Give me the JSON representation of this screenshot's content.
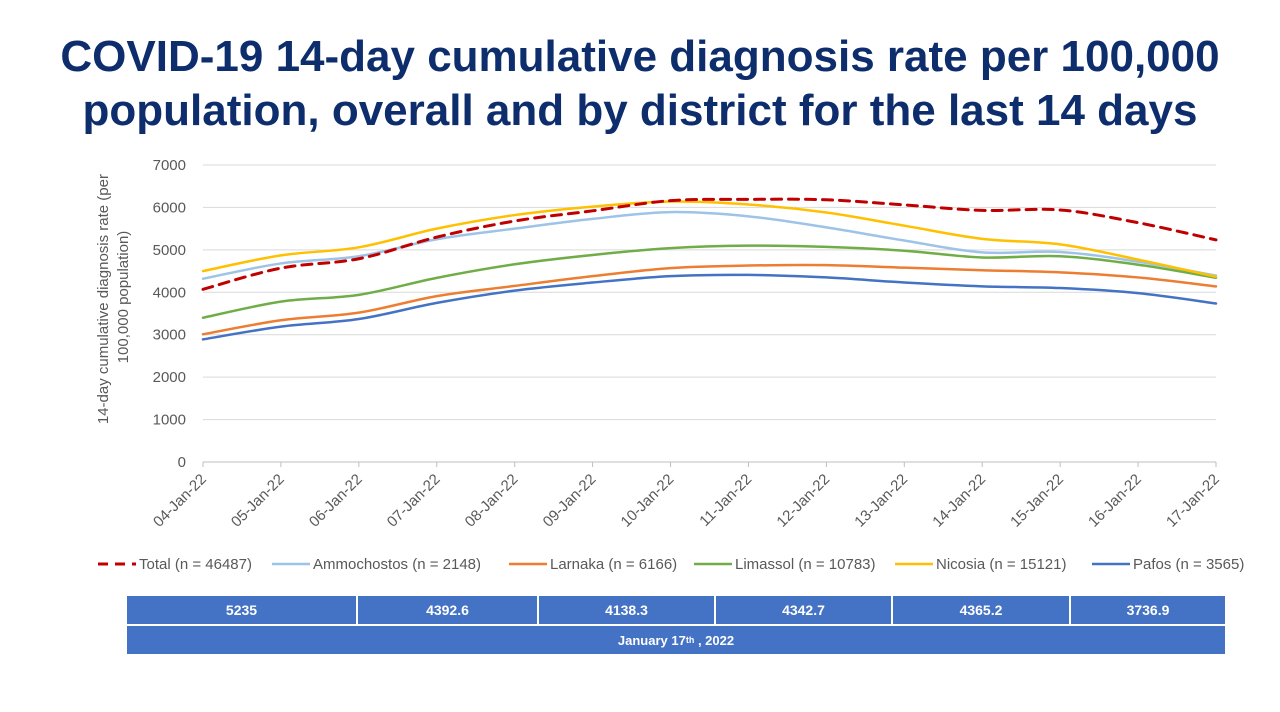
{
  "title_lines": [
    "COVID-19 14-day cumulative diagnosis rate per 100,000",
    "population, overall and by district for the last 14 days"
  ],
  "chart_data": {
    "type": "line",
    "ylabel_lines": [
      "14-day cumulative diagnosis rate (per",
      "100,000 population)"
    ],
    "ylim": [
      0,
      7000
    ],
    "yticks": [
      0,
      1000,
      2000,
      3000,
      4000,
      5000,
      6000,
      7000
    ],
    "grid": true,
    "legend_position": "bottom",
    "categories": [
      "04-Jan-22",
      "05-Jan-22",
      "06-Jan-22",
      "07-Jan-22",
      "08-Jan-22",
      "09-Jan-22",
      "10-Jan-22",
      "11-Jan-22",
      "12-Jan-22",
      "13-Jan-22",
      "14-Jan-22",
      "15-Jan-22",
      "16-Jan-22",
      "17-Jan-22"
    ],
    "series": [
      {
        "name": "Total (n = 46487)",
        "color": "#c00000",
        "dash": true,
        "values": [
          4070,
          4570,
          4790,
          5300,
          5680,
          5920,
          6160,
          6190,
          6180,
          6060,
          5930,
          5940,
          5640,
          5235
        ]
      },
      {
        "name": "Ammochostos (n = 2148)",
        "color": "#9dc3e6",
        "dash": false,
        "values": [
          4320,
          4680,
          4850,
          5250,
          5500,
          5730,
          5890,
          5790,
          5530,
          5220,
          4940,
          4950,
          4720,
          4392.6
        ]
      },
      {
        "name": "Larnaka (n = 6166)",
        "color": "#ed7d31",
        "dash": false,
        "values": [
          3010,
          3340,
          3520,
          3910,
          4150,
          4380,
          4570,
          4630,
          4640,
          4580,
          4520,
          4470,
          4350,
          4138.3
        ]
      },
      {
        "name": "Limassol (n = 10783)",
        "color": "#70ad47",
        "dash": false,
        "values": [
          3400,
          3780,
          3940,
          4340,
          4660,
          4880,
          5040,
          5100,
          5070,
          4980,
          4820,
          4850,
          4650,
          4342.7
        ]
      },
      {
        "name": "Nicosia (n = 15121)",
        "color": "#ffc000",
        "dash": false,
        "values": [
          4500,
          4870,
          5060,
          5500,
          5820,
          6020,
          6140,
          6070,
          5880,
          5570,
          5260,
          5130,
          4770,
          4365.2
        ]
      },
      {
        "name": "Pafos (n = 3565)",
        "color": "#4472c4",
        "dash": false,
        "values": [
          2890,
          3190,
          3370,
          3750,
          4040,
          4230,
          4380,
          4410,
          4350,
          4230,
          4140,
          4100,
          3980,
          3736.9
        ]
      }
    ]
  },
  "summary_values": [
    "5235",
    "4392.6",
    "4138.3",
    "4342.7",
    "4365.2",
    "3736.9"
  ],
  "summary_date": {
    "month_day": "January 17",
    "ordinal": "th",
    "year": ", 2022"
  }
}
